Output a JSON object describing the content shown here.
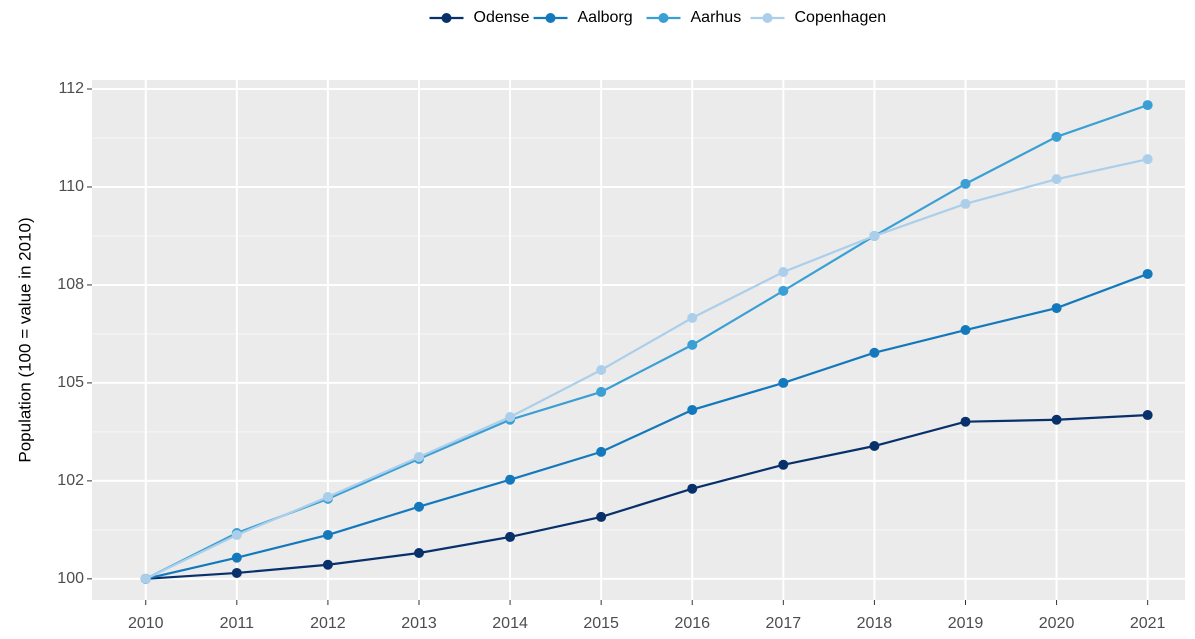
{
  "chart_data": {
    "type": "line",
    "y_label": "Population (100 = value in 2010)",
    "x": [
      2010,
      2011,
      2012,
      2013,
      2014,
      2015,
      2016,
      2017,
      2018,
      2019,
      2020,
      2021
    ],
    "series": [
      {
        "name": "Odense",
        "color": "#08306b",
        "values": [
          100,
          100.15,
          100.36,
          100.66,
          101.07,
          101.58,
          102.3,
          102.91,
          103.39,
          104.01,
          104.06,
          104.18
        ]
      },
      {
        "name": "Aalborg",
        "color": "#1479bc",
        "values": [
          100,
          100.54,
          101.12,
          101.84,
          102.53,
          103.24,
          104.31,
          105.0,
          105.77,
          106.35,
          106.91,
          107.78
        ]
      },
      {
        "name": "Aarhus",
        "color": "#3a9fd4",
        "values": [
          100,
          101.17,
          102.04,
          103.06,
          104.06,
          104.77,
          105.97,
          107.35,
          108.75,
          110.08,
          111.28,
          112.09
        ]
      },
      {
        "name": "Copenhagen",
        "color": "#abcfeb",
        "values": [
          100,
          101.12,
          102.09,
          103.11,
          104.13,
          105.33,
          106.66,
          107.83,
          108.75,
          109.57,
          110.2,
          110.71
        ]
      }
    ],
    "xlim": [
      2009.41,
      2021.41
    ],
    "xticks": [
      2010,
      2011,
      2012,
      2013,
      2014,
      2015,
      2016,
      2017,
      2018,
      2019,
      2020,
      2021
    ],
    "ylim": [
      99.46,
      112.73
    ],
    "yticks": [
      100,
      {
        "value": 102.5,
        "label": "102"
      },
      105,
      {
        "value": 107.5,
        "label": "108"
      },
      110,
      {
        "value": 112.5,
        "label": "112"
      }
    ],
    "grid": true,
    "legend": "top"
  }
}
